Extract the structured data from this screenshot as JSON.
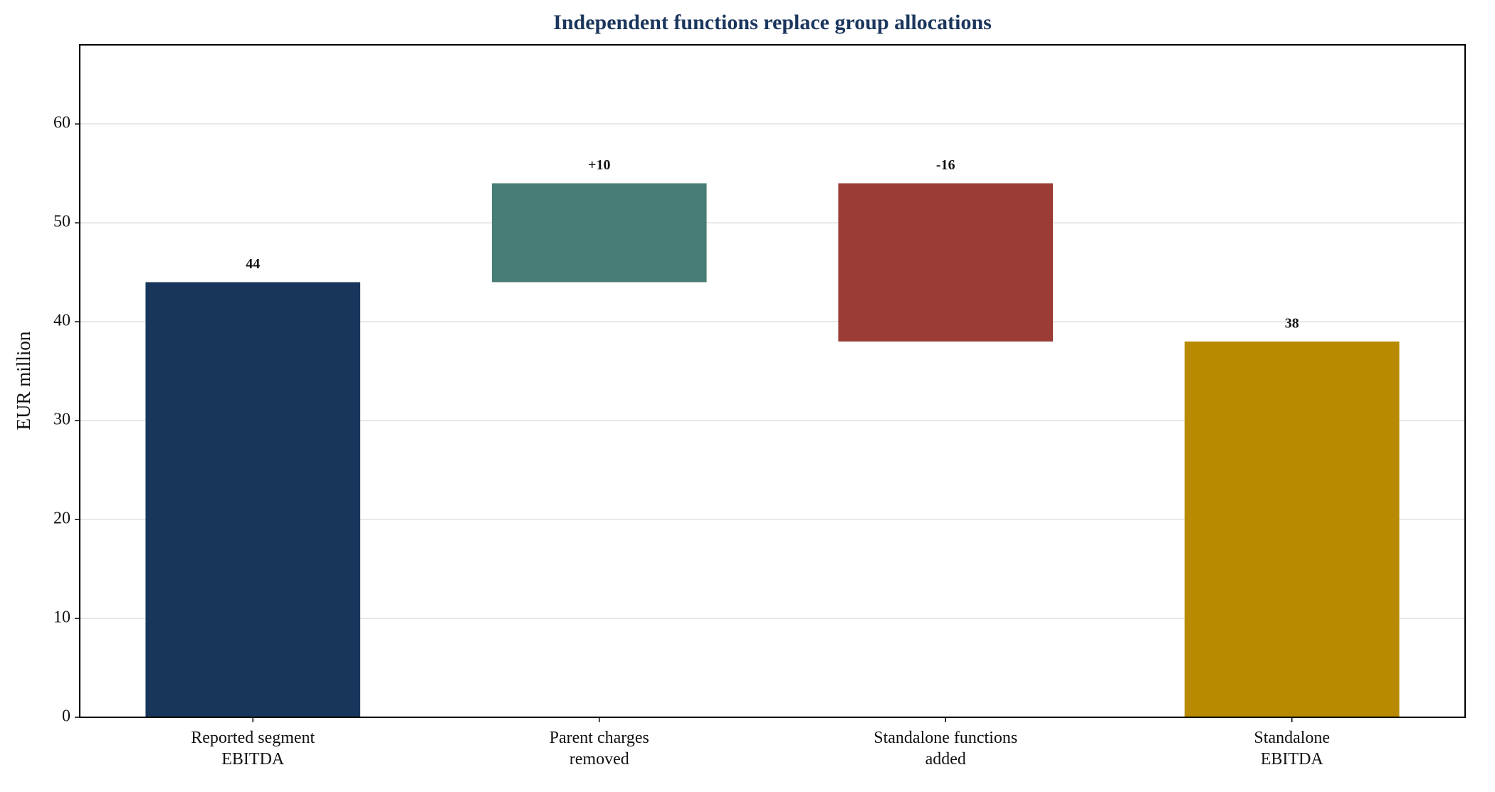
{
  "chart_data": {
    "type": "waterfall",
    "title": "Independent functions replace group allocations",
    "y_label": "EUR million",
    "categories": [
      "Reported segment\nEBITDA",
      "Parent charges\nremoved",
      "Standalone functions\nadded",
      "Standalone\nEBITDA"
    ],
    "measures": [
      "absolute",
      "relative",
      "relative",
      "total"
    ],
    "values": [
      44,
      10,
      -16,
      38
    ],
    "value_labels": [
      "44",
      "+10",
      "-16",
      "38"
    ],
    "colors": [
      "#18365c",
      "#477d74",
      "#9b3d36",
      "#b78a00"
    ],
    "ylim": [
      0,
      68
    ],
    "yticks": [
      0,
      10,
      20,
      30,
      40,
      50,
      60
    ],
    "grid": true
  }
}
